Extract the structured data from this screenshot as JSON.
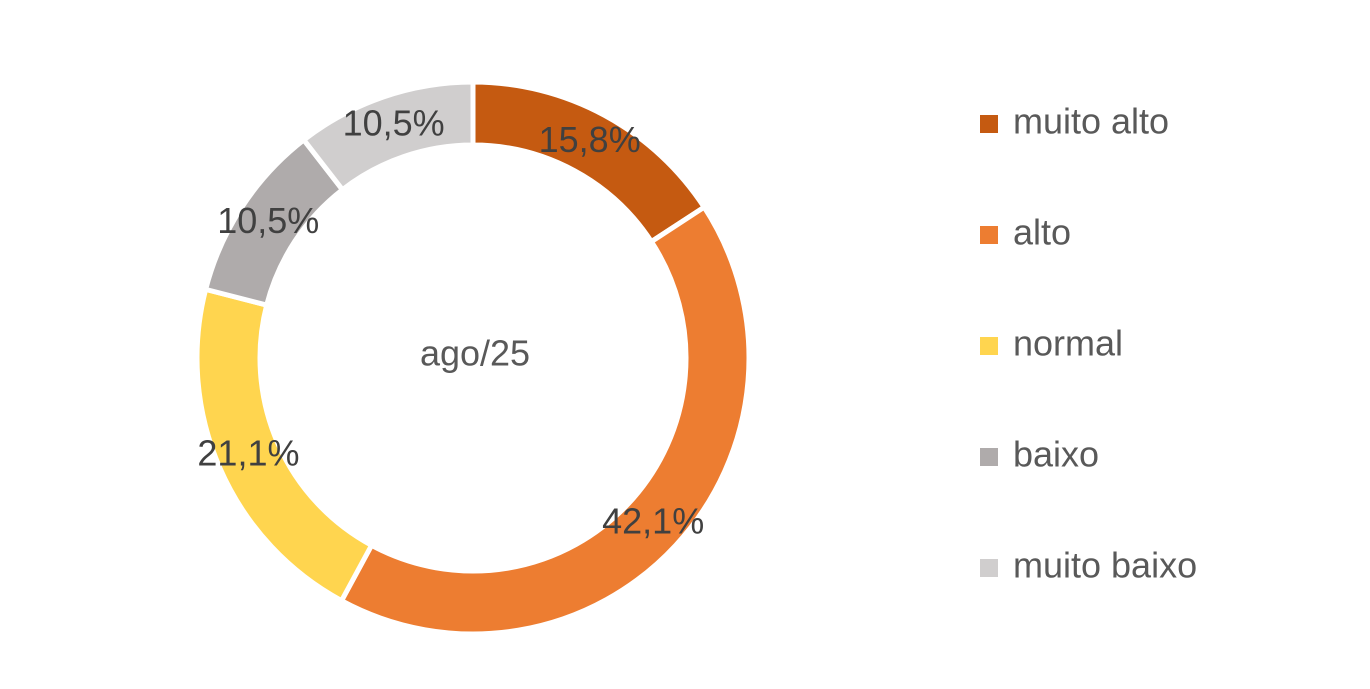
{
  "chart_data": {
    "type": "donut",
    "center_label": "ago/25",
    "categories": [
      "muito alto",
      "alto",
      "normal",
      "baixo",
      "muito baixo"
    ],
    "values": [
      15.8,
      42.1,
      21.1,
      10.5,
      10.5
    ],
    "value_labels": [
      "15,8%",
      "42,1%",
      "21,1%",
      "10,5%",
      "10,5%"
    ],
    "colors": [
      "#c55a11",
      "#ed7d31",
      "#ffd54f",
      "#afabab",
      "#d0cece"
    ],
    "legend": "right"
  }
}
